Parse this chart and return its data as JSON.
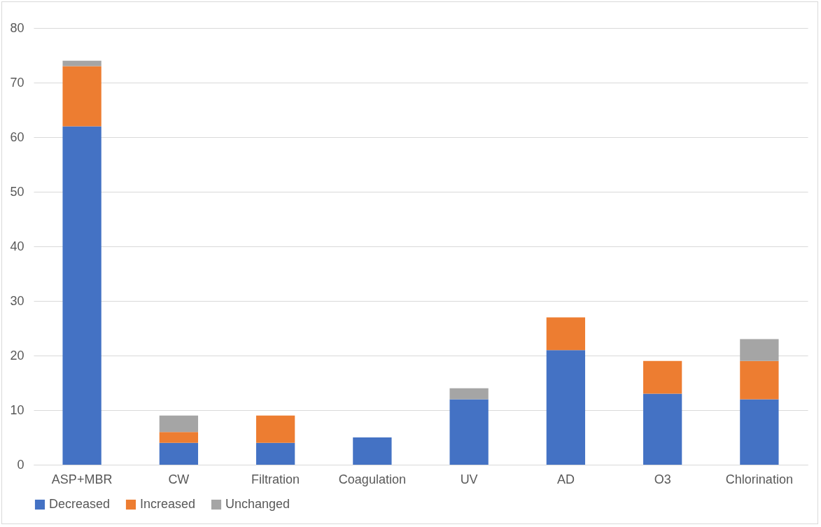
{
  "chart_data": {
    "type": "bar",
    "stacked": true,
    "categories": [
      "ASP+MBR",
      "CW",
      "Filtration",
      "Coagulation",
      "UV",
      "AD",
      "O3",
      "Chlorination"
    ],
    "series": [
      {
        "name": "Decreased",
        "color": "#4472c4",
        "values": [
          62,
          4,
          4,
          5,
          12,
          21,
          13,
          12
        ]
      },
      {
        "name": "Increased",
        "color": "#ed7d31",
        "values": [
          11,
          2,
          5,
          0,
          0,
          6,
          6,
          7
        ]
      },
      {
        "name": "Unchanged",
        "color": "#a5a5a5",
        "values": [
          1,
          3,
          0,
          0,
          2,
          0,
          0,
          4
        ]
      }
    ],
    "ylim": [
      0,
      80
    ],
    "yticks": [
      0,
      10,
      20,
      30,
      40,
      50,
      60,
      70,
      80
    ],
    "grid": "y",
    "legend": "bottom"
  }
}
